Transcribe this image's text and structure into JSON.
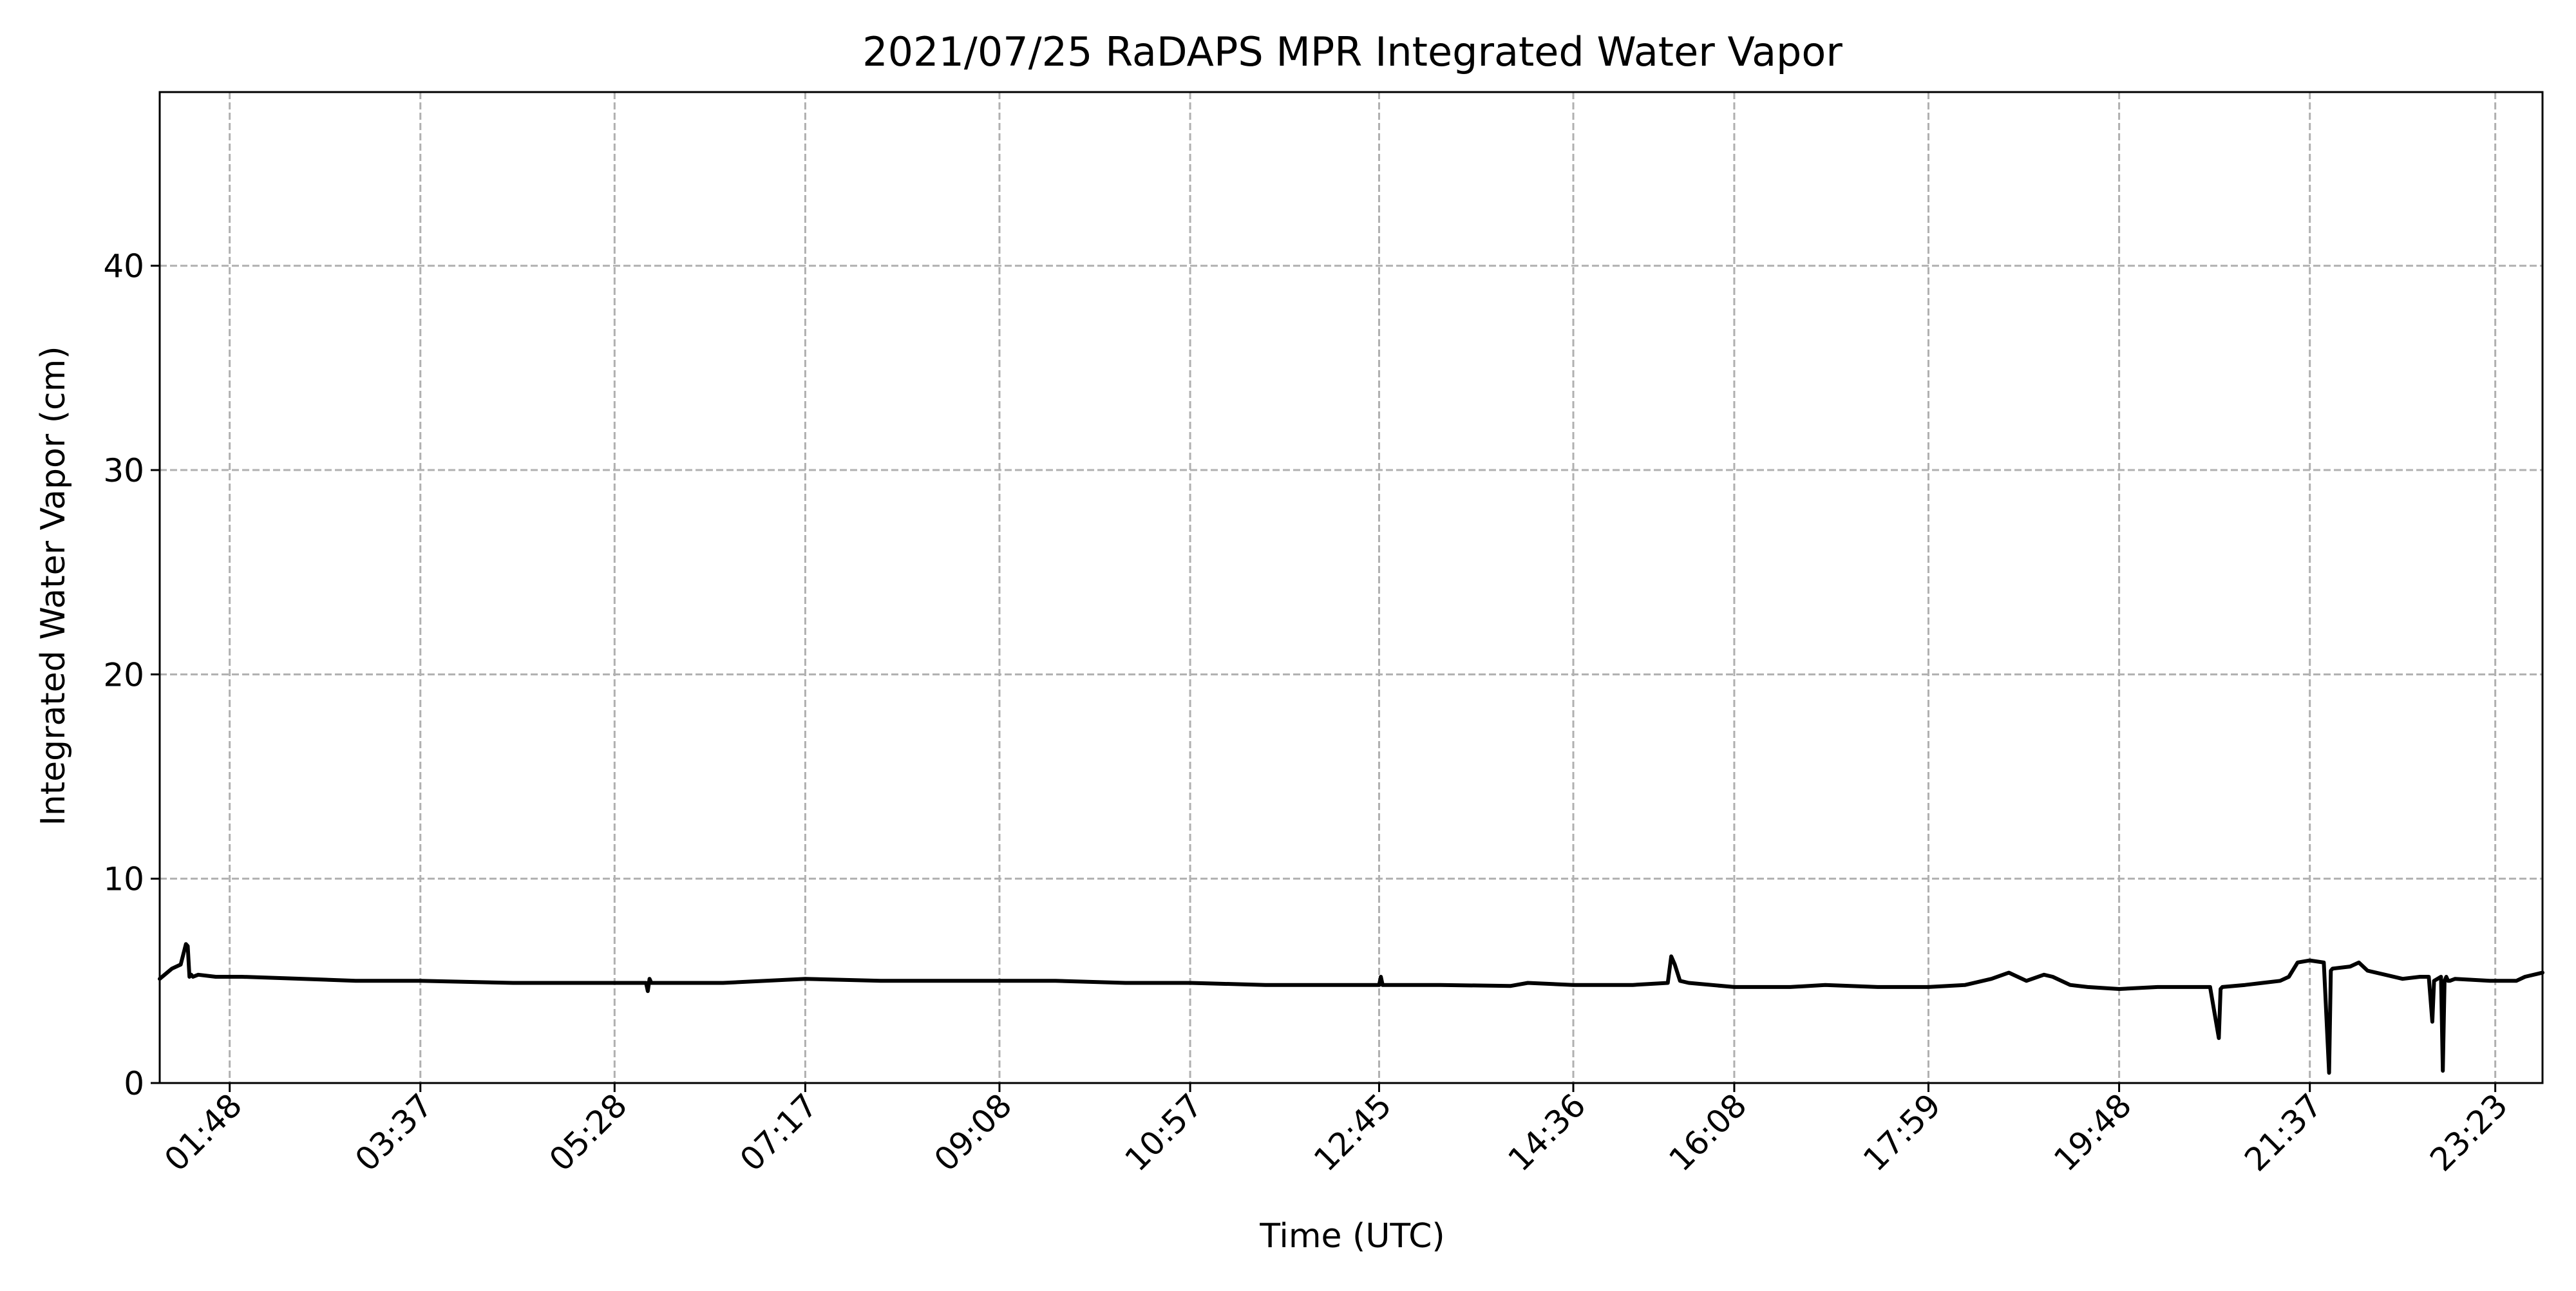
{
  "chart_data": {
    "type": "line",
    "title": "2021/07/25 RaDAPS MPR Integrated Water Vapor",
    "xlabel": "Time (UTC)",
    "ylabel": "Integrated Water Vapor (cm)",
    "xlim": [
      "01:08",
      "23:50"
    ],
    "ylim": [
      0,
      48.5
    ],
    "grid": true,
    "legend": "none",
    "x_ticks": [
      "01:48",
      "03:37",
      "05:28",
      "07:17",
      "09:08",
      "10:57",
      "12:45",
      "14:36",
      "16:08",
      "17:59",
      "19:48",
      "21:37",
      "23:23"
    ],
    "y_ticks": [
      0,
      10,
      20,
      30,
      40
    ],
    "colors": {
      "line": "#000000",
      "grid": "#b0b0b0"
    },
    "series": [
      {
        "x": [
          "01:08",
          "01:15",
          "01:20",
          "01:23",
          "01:24",
          "01:25",
          "01:26",
          "01:27",
          "01:30",
          "01:40",
          "01:55",
          "02:30",
          "03:00",
          "03:37",
          "04:30",
          "05:28",
          "05:46",
          "05:47",
          "05:48",
          "05:49",
          "06:00",
          "06:30",
          "07:17",
          "08:00",
          "08:30",
          "09:08",
          "09:40",
          "10:20",
          "10:57",
          "11:40",
          "12:20",
          "12:45",
          "12:46",
          "12:47",
          "13:20",
          "14:00",
          "14:10",
          "14:36",
          "15:10",
          "15:30",
          "15:32",
          "15:34",
          "15:37",
          "15:42",
          "16:08",
          "16:40",
          "17:00",
          "17:30",
          "17:59",
          "18:20",
          "18:35",
          "18:45",
          "18:55",
          "19:05",
          "19:10",
          "19:20",
          "19:30",
          "19:48",
          "20:10",
          "20:40",
          "20:45",
          "20:46",
          "20:47",
          "21:00",
          "21:10",
          "21:20",
          "21:25",
          "21:30",
          "21:37",
          "21:45",
          "21:48",
          "21:49",
          "21:50",
          "22:00",
          "22:05",
          "22:10",
          "22:20",
          "22:30",
          "22:40",
          "22:45",
          "22:47",
          "22:48",
          "22:52",
          "22:53",
          "22:54",
          "22:55",
          "22:56",
          "22:57",
          "23:00",
          "23:20",
          "23:35",
          "23:40",
          "23:50"
        ],
        "y": [
          5.1,
          5.6,
          5.8,
          6.8,
          6.7,
          5.2,
          5.3,
          5.2,
          5.3,
          5.2,
          5.2,
          5.1,
          5.0,
          5.0,
          4.9,
          4.9,
          4.9,
          4.5,
          5.1,
          4.9,
          4.9,
          4.9,
          5.1,
          5.0,
          5.0,
          5.0,
          5.0,
          4.9,
          4.9,
          4.8,
          4.8,
          4.8,
          5.2,
          4.8,
          4.8,
          4.75,
          4.9,
          4.8,
          4.8,
          4.9,
          6.2,
          5.8,
          5.0,
          4.9,
          4.7,
          4.7,
          4.8,
          4.7,
          4.7,
          4.8,
          5.1,
          5.4,
          5.0,
          5.3,
          5.2,
          4.8,
          4.7,
          4.6,
          4.7,
          4.7,
          2.2,
          4.6,
          4.7,
          4.8,
          4.9,
          5.0,
          5.2,
          5.9,
          6.0,
          5.9,
          0.5,
          5.5,
          5.6,
          5.7,
          5.9,
          5.5,
          5.3,
          5.1,
          5.2,
          5.2,
          3.0,
          5.0,
          5.2,
          0.6,
          5.0,
          5.2,
          5.0,
          5.0,
          5.1,
          5.0,
          5.0,
          5.2,
          5.4
        ]
      }
    ]
  }
}
